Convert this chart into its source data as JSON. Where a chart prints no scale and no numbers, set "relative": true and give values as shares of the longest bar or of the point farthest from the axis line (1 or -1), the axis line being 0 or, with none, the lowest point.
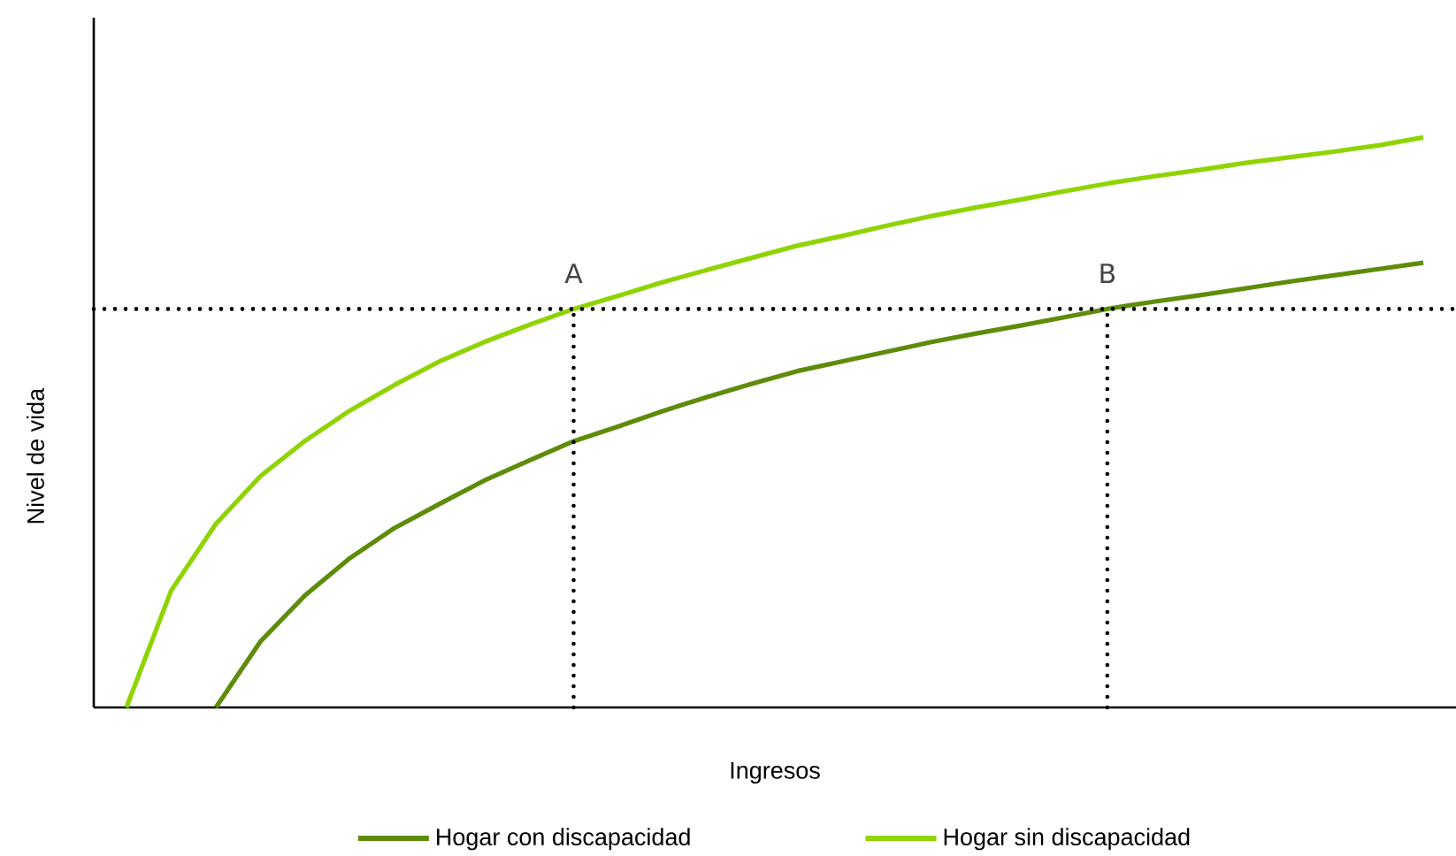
{
  "chart_data": {
    "type": "line",
    "relative": true,
    "xlabel": "Ingresos",
    "ylabel": "Nivel de vida",
    "legend": "bottom",
    "marker": "none",
    "categories": [
      null,
      null,
      null,
      null,
      null,
      null,
      null,
      null,
      null,
      null,
      null,
      null,
      null,
      null,
      null,
      null,
      null,
      null,
      null,
      null,
      null,
      null,
      null,
      null,
      null,
      null,
      null,
      null,
      null,
      null
    ],
    "series": [
      {
        "name": "Hogar con discapacidad",
        "color": "#5e8c0a",
        "values": [
          null,
          null,
          0,
          0.116,
          0.197,
          0.262,
          0.315,
          0.357,
          0.398,
          0.433,
          0.467,
          0.493,
          0.52,
          0.545,
          0.568,
          0.59,
          0.607,
          0.624,
          0.641,
          0.656,
          0.67,
          0.685,
          0.7,
          0.712,
          0.723,
          0.735,
          0.747,
          0.758,
          0.769,
          0.78
        ]
      },
      {
        "name": "Hogar sin discapacidad",
        "color": "#8fd400",
        "values": [
          0,
          0.205,
          0.322,
          0.406,
          0.468,
          0.521,
          0.566,
          0.607,
          0.641,
          0.671,
          0.699,
          0.722,
          0.746,
          0.768,
          0.789,
          0.81,
          0.827,
          0.845,
          0.862,
          0.877,
          0.891,
          0.906,
          0.92,
          0.932,
          0.943,
          0.955,
          0.965,
          0.975,
          0.986,
          1
        ]
      }
    ],
    "ref_lines": [
      {
        "axis": "y",
        "value": 0.699,
        "color": "#000000",
        "line_style": "dotted"
      }
    ],
    "annotations": [
      "A",
      "B"
    ]
  }
}
